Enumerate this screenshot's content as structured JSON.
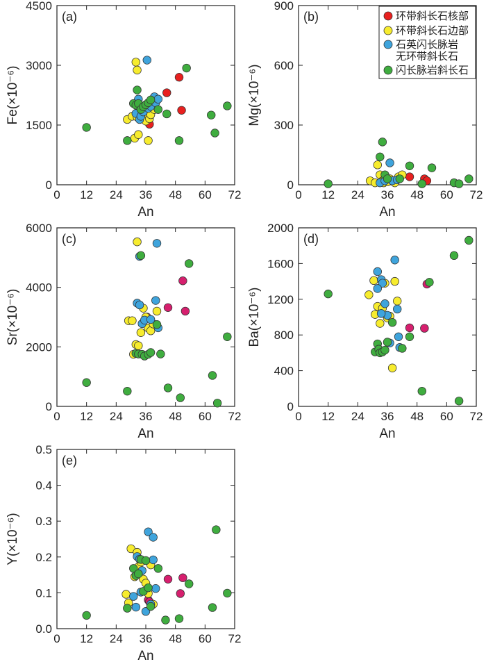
{
  "colors": {
    "core": "#e8201f",
    "rim": "#f7ec2e",
    "qz": "#3fa4dc",
    "dyke": "#3fad3f",
    "core_alt": "#d61f6e"
  },
  "legend": [
    {
      "key": "core",
      "label": "环带斜长石核部"
    },
    {
      "key": "rim",
      "label": "环带斜长石边部"
    },
    {
      "key": "qz",
      "label": "石英闪长脉岩"
    },
    {
      "key": "qz",
      "label": "无环带斜长石"
    },
    {
      "key": "dyke",
      "label": "闪长脉岩斜长石"
    }
  ],
  "chart_data": [
    {
      "type": "scatter",
      "panel": "(a)",
      "xlabel": "An",
      "ylabel": "Fe(×10⁻⁶)",
      "xlim": [
        0,
        72
      ],
      "ylim": [
        0,
        4500
      ],
      "xticks": [
        "0",
        "12",
        "24",
        "36",
        "48",
        "60",
        "72"
      ],
      "yticks": [
        "0",
        "1500",
        "3000",
        "4500"
      ],
      "series": [
        {
          "name": "环带斜长石核部",
          "color": "core",
          "x": [
            37.5,
            44.5,
            49.5,
            50.5
          ],
          "y": [
            1520,
            2310,
            2700,
            1870
          ]
        },
        {
          "name": "环带斜长石边部",
          "color": "rim",
          "x": [
            32,
            32.5,
            28.5,
            30.5,
            31.5,
            32.5,
            33,
            34,
            35,
            36,
            37,
            37.5,
            38,
            39.5
          ],
          "y": [
            3080,
            2880,
            1640,
            1720,
            1170,
            1700,
            1260,
            1830,
            1780,
            1600,
            1110,
            1660,
            1760,
            1890
          ]
        },
        {
          "name": "石英闪长脉岩无环带斜长石",
          "color": "qz",
          "x": [
            36.5,
            32,
            33,
            33.5,
            34,
            35,
            36,
            37,
            38,
            39.5,
            40,
            41
          ],
          "y": [
            3130,
            1790,
            2150,
            1640,
            1720,
            1830,
            1990,
            1920,
            1970,
            2210,
            2060,
            2150
          ]
        },
        {
          "name": "闪长脉岩斜长石",
          "color": "dyke",
          "x": [
            12,
            28.5,
            31,
            32,
            32.5,
            33,
            34,
            35,
            36,
            37,
            38,
            41,
            44.5,
            49.5,
            52.5,
            62.5,
            64,
            69
          ],
          "y": [
            1440,
            1110,
            2040,
            2000,
            2380,
            2040,
            1890,
            1960,
            2010,
            2060,
            2130,
            1890,
            1780,
            1110,
            2930,
            1750,
            1300,
            1980
          ]
        }
      ]
    },
    {
      "type": "scatter",
      "panel": "(b)",
      "xlabel": "An",
      "ylabel": "Mg(×10⁻⁶)",
      "xlim": [
        0,
        72
      ],
      "ylim": [
        0,
        900
      ],
      "xticks": [
        "0",
        "12",
        "24",
        "36",
        "48",
        "60",
        "72"
      ],
      "yticks": [
        "0",
        "300",
        "600",
        "900"
      ],
      "series": [
        {
          "name": "环带斜长石核部",
          "color": "core",
          "x": [
            37,
            45,
            51,
            52
          ],
          "y": [
            20,
            40,
            30,
            20
          ]
        },
        {
          "name": "环带斜长石边部",
          "color": "rim",
          "x": [
            29,
            31,
            32,
            33,
            34,
            34.5,
            35,
            36,
            37,
            38,
            39,
            40.5,
            42
          ],
          "y": [
            20,
            10,
            100,
            50,
            20,
            10,
            30,
            15,
            30,
            20,
            10,
            40,
            50
          ]
        },
        {
          "name": "石英闪长脉岩无环带斜长石",
          "color": "qz",
          "x": [
            33,
            35,
            37,
            38,
            40
          ],
          "y": [
            10,
            20,
            110,
            20,
            25
          ]
        },
        {
          "name": "闪长脉岩斜长石",
          "color": "dyke",
          "x": [
            12,
            33,
            34,
            35,
            36,
            41,
            45,
            50,
            54,
            63,
            65,
            69
          ],
          "y": [
            5,
            140,
            215,
            50,
            30,
            30,
            95,
            5,
            85,
            10,
            5,
            30
          ]
        }
      ]
    },
    {
      "type": "scatter",
      "panel": "(c)",
      "xlabel": "An",
      "ylabel": "Sr(×10⁻⁶)",
      "xlim": [
        0,
        72
      ],
      "ylim": [
        0,
        6000
      ],
      "xticks": [
        "0",
        "12",
        "24",
        "36",
        "48",
        "60",
        "72"
      ],
      "yticks": [
        "0",
        "2000",
        "4000",
        "6000"
      ],
      "series": [
        {
          "name": "环带斜长石核部",
          "color": "core_alt",
          "x": [
            36.5,
            45,
            51,
            52
          ],
          "y": [
            3000,
            3320,
            4220,
            3200
          ]
        },
        {
          "name": "环带斜长石边部",
          "color": "rim",
          "x": [
            32.5,
            29,
            30.5,
            31,
            32,
            33,
            34,
            35,
            36,
            37,
            38,
            39,
            40.5
          ],
          "y": [
            5530,
            2880,
            2880,
            1750,
            2080,
            2040,
            2480,
            3300,
            3000,
            2630,
            2540,
            2770,
            3200
          ]
        },
        {
          "name": "石英闪长脉岩无环带斜长石",
          "color": "qz",
          "x": [
            33.5,
            40.5,
            32.5,
            33.5,
            34.5,
            35.5,
            38,
            40,
            41
          ],
          "y": [
            5040,
            5480,
            3470,
            3410,
            2780,
            2900,
            2920,
            3560,
            2640
          ]
        },
        {
          "name": "闪长脉岩斜长石",
          "color": "dyke",
          "x": [
            12,
            28.5,
            32,
            33,
            34,
            34.5,
            35.5,
            37,
            38,
            40.5,
            42,
            45,
            50,
            53.5,
            63,
            65,
            69
          ],
          "y": [
            800,
            510,
            1780,
            1760,
            5070,
            1750,
            1690,
            1750,
            1810,
            2750,
            1760,
            620,
            290,
            4800,
            1040,
            110,
            2340
          ]
        }
      ]
    },
    {
      "type": "scatter",
      "panel": "(d)",
      "xlabel": "An",
      "ylabel": "Ba(×10⁻⁶)",
      "xlim": [
        0,
        72
      ],
      "ylim": [
        0,
        2000
      ],
      "xticks": [
        "0",
        "12",
        "24",
        "36",
        "48",
        "60",
        "72"
      ],
      "yticks": [
        "0",
        "400",
        "800",
        "1200",
        "1600",
        "2000"
      ],
      "series": [
        {
          "name": "环带斜长石核部",
          "color": "core_alt",
          "x": [
            37,
            45,
            51,
            52
          ],
          "y": [
            1010,
            880,
            875,
            1370
          ]
        },
        {
          "name": "环带斜长石边部",
          "color": "rim",
          "x": [
            28.5,
            30.5,
            31,
            32,
            33,
            34,
            35,
            36,
            37,
            38,
            39,
            40
          ],
          "y": [
            1250,
            1410,
            1030,
            1120,
            930,
            1100,
            1380,
            990,
            1010,
            430,
            1400,
            1180
          ]
        },
        {
          "name": "石英闪长脉岩无环带斜长石",
          "color": "qz",
          "x": [
            32,
            33.5,
            34,
            32,
            35,
            36,
            37,
            39,
            40,
            40.5,
            41,
            33.5
          ],
          "y": [
            1510,
            1420,
            1380,
            1320,
            1150,
            1020,
            710,
            1640,
            1090,
            780,
            660,
            1040
          ]
        },
        {
          "name": "闪长脉岩斜长石",
          "color": "dyke",
          "x": [
            12,
            31,
            32,
            32.5,
            33,
            34,
            35,
            36,
            38,
            42,
            45,
            50,
            53,
            63,
            65,
            69
          ],
          "y": [
            1260,
            610,
            700,
            640,
            600,
            610,
            630,
            720,
            940,
            650,
            780,
            170,
            1390,
            1690,
            60,
            1860
          ]
        }
      ]
    },
    {
      "type": "scatter",
      "panel": "(e)",
      "xlabel": "An",
      "ylabel": "Y(×10⁻⁶)",
      "xlim": [
        0,
        72
      ],
      "ylim": [
        0,
        0.5
      ],
      "xticks": [
        "0",
        "12",
        "24",
        "36",
        "48",
        "60",
        "72"
      ],
      "yticks": [
        "0.0",
        "0.1",
        "0.2",
        "0.3",
        "0.4",
        "0.5"
      ],
      "series": [
        {
          "name": "环带斜长石核部",
          "color": "core_alt",
          "x": [
            37,
            37.5,
            45,
            50,
            51
          ],
          "y": [
            0.08,
            0.075,
            0.138,
            0.098,
            0.142
          ]
        },
        {
          "name": "环带斜长石边部",
          "color": "rim",
          "x": [
            30,
            31.5,
            32.5,
            33,
            34,
            35,
            36,
            37,
            38,
            28,
            29,
            39
          ],
          "y": [
            0.223,
            0.145,
            0.213,
            0.172,
            0.186,
            0.138,
            0.127,
            0.098,
            0.178,
            0.096,
            0.072,
            0.068
          ]
        },
        {
          "name": "石英闪长脉岩无环带斜长石",
          "color": "qz",
          "x": [
            37,
            39,
            31,
            32.5,
            33.5,
            34.5,
            36,
            38,
            39,
            40,
            34,
            32
          ],
          "y": [
            0.27,
            0.255,
            0.09,
            0.201,
            0.194,
            0.162,
            0.048,
            0.068,
            0.192,
            0.112,
            0.102,
            0.06
          ]
        },
        {
          "name": "闪长脉岩斜长石",
          "color": "dyke",
          "x": [
            12,
            28.5,
            31,
            32,
            33,
            34,
            35,
            36,
            37,
            38,
            41,
            44,
            49.5,
            53.5,
            63,
            64.5,
            69
          ],
          "y": [
            0.037,
            0.057,
            0.168,
            0.148,
            0.153,
            0.193,
            0.104,
            0.19,
            0.114,
            0.062,
            0.168,
            0.024,
            0.028,
            0.125,
            0.059,
            0.276,
            0.099
          ]
        }
      ]
    }
  ]
}
